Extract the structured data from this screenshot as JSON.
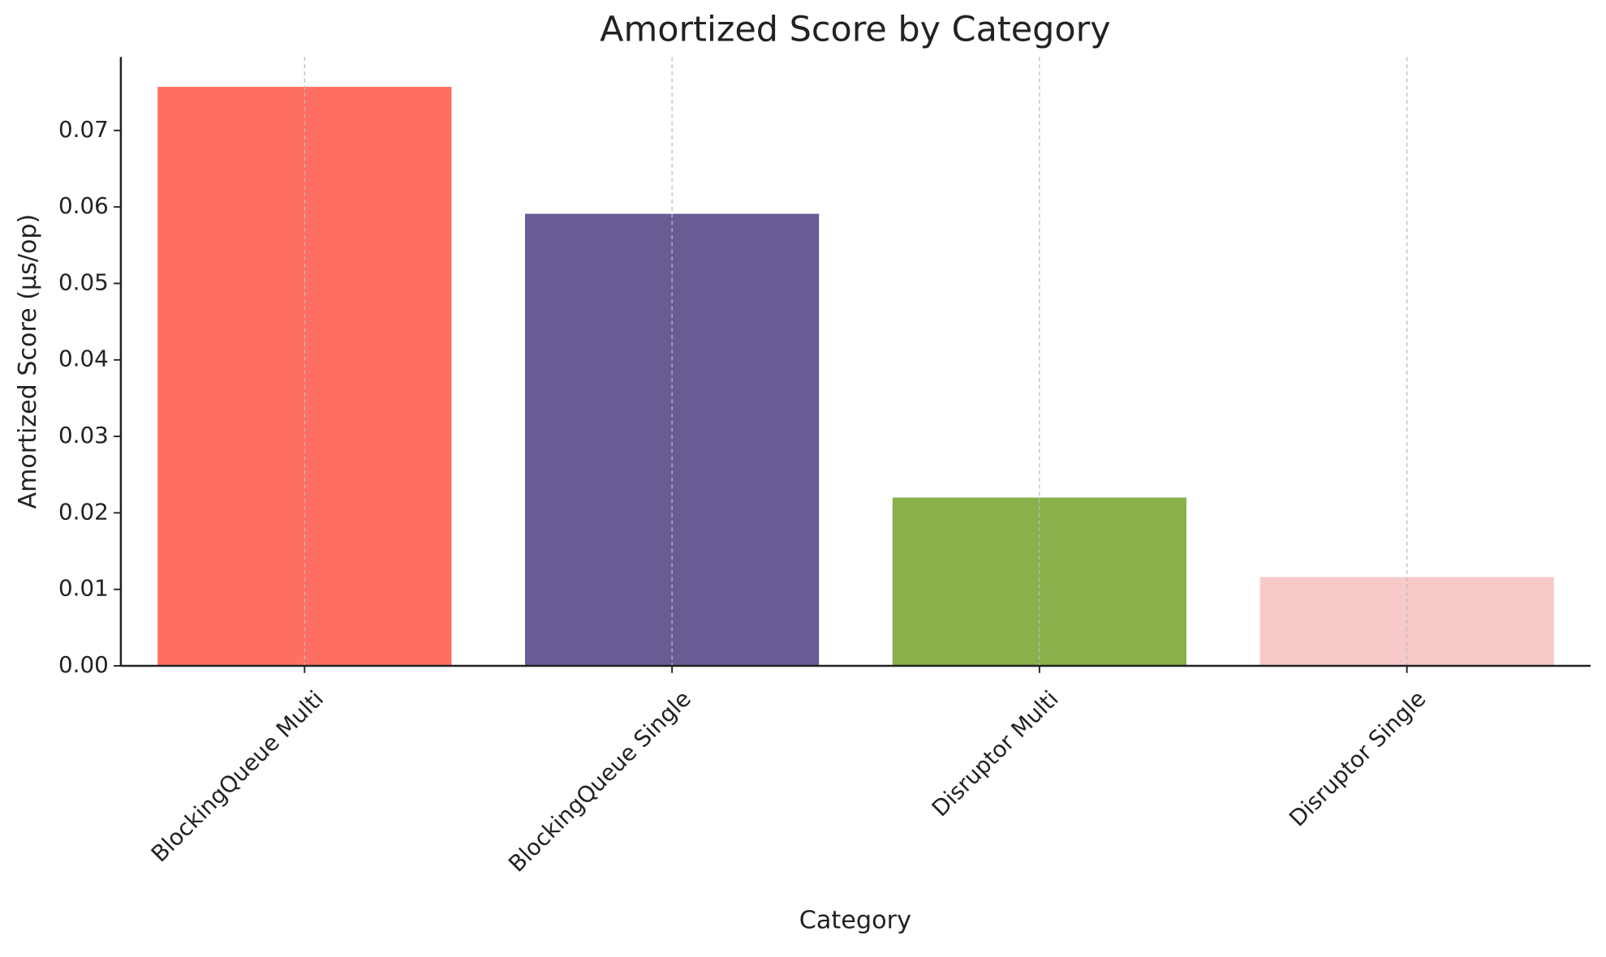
{
  "chart_data": {
    "type": "bar",
    "title": "Amortized Score by Category",
    "x_label": "Category",
    "y_label": "Amortized Score (µs/op)",
    "categories": [
      "BlockingQueue Multi",
      "BlockingQueue Single",
      "Disruptor Multi",
      "Disruptor Single"
    ],
    "values": [
      0.0757,
      0.0591,
      0.022,
      0.0116
    ],
    "colors": [
      "#ff6f61",
      "#6b5b95",
      "#88b04b",
      "#f7cac9"
    ],
    "ylim": [
      0,
      0.0796
    ],
    "yticks": [
      {
        "value": 0,
        "label": "0.00"
      },
      {
        "value": 0.01,
        "label": "0.01"
      },
      {
        "value": 0.02,
        "label": "0.02"
      },
      {
        "value": 0.03,
        "label": "0.03"
      },
      {
        "value": 0.04,
        "label": "0.04"
      },
      {
        "value": 0.05,
        "label": "0.05"
      },
      {
        "value": 0.06,
        "label": "0.06"
      },
      {
        "value": 0.07,
        "label": "0.07"
      }
    ],
    "grid": "x"
  }
}
